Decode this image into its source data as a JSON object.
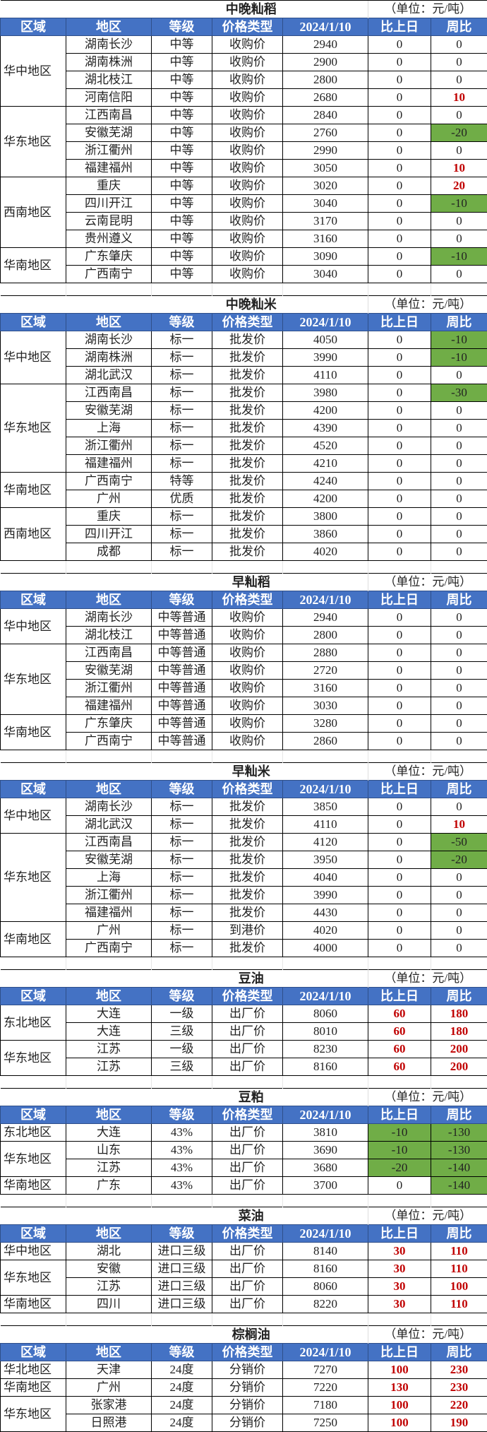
{
  "headers": [
    "区域",
    "地区",
    "等级",
    "价格类型",
    "2024/1/10",
    "比上日",
    "周比"
  ],
  "unit": "（单位：元/吨）",
  "colors": {
    "header_bg": "#4472C4",
    "decrease_bg": "#70AD47",
    "increase_text": "#C00000"
  },
  "tables": [
    {
      "title": "中晚籼稻",
      "groups": [
        {
          "region": "华中地区",
          "rows": [
            [
              "湖南长沙",
              "中等",
              "收购价",
              "2940",
              "0",
              "0"
            ],
            [
              "湖南株洲",
              "中等",
              "收购价",
              "2900",
              "0",
              "0"
            ],
            [
              "湖北枝江",
              "中等",
              "收购价",
              "2800",
              "0",
              "0"
            ],
            [
              "河南信阳",
              "中等",
              "收购价",
              "2680",
              "0",
              "10"
            ]
          ]
        },
        {
          "region": "华东地区",
          "rows": [
            [
              "江西南昌",
              "中等",
              "收购价",
              "2840",
              "0",
              "0"
            ],
            [
              "安徽芜湖",
              "中等",
              "收购价",
              "2760",
              "0",
              "-20"
            ],
            [
              "浙江衢州",
              "中等",
              "收购价",
              "2990",
              "0",
              "0"
            ],
            [
              "福建福州",
              "中等",
              "收购价",
              "3050",
              "0",
              "10"
            ]
          ]
        },
        {
          "region": "西南地区",
          "rows": [
            [
              "重庆",
              "中等",
              "收购价",
              "3020",
              "0",
              "20"
            ],
            [
              "四川开江",
              "中等",
              "收购价",
              "3040",
              "0",
              "-10"
            ],
            [
              "云南昆明",
              "中等",
              "收购价",
              "3170",
              "0",
              "0"
            ],
            [
              "贵州遵义",
              "中等",
              "收购价",
              "3160",
              "0",
              "0"
            ]
          ]
        },
        {
          "region": "华南地区",
          "rows": [
            [
              "广东肇庆",
              "中等",
              "收购价",
              "3090",
              "0",
              "-10"
            ],
            [
              "广西南宁",
              "中等",
              "收购价",
              "3040",
              "0",
              "0"
            ]
          ]
        }
      ]
    },
    {
      "title": "中晚籼米",
      "groups": [
        {
          "region": "华中地区",
          "rows": [
            [
              "湖南长沙",
              "标一",
              "批发价",
              "4050",
              "0",
              "-10"
            ],
            [
              "湖南株洲",
              "标一",
              "批发价",
              "3990",
              "0",
              "-10"
            ],
            [
              "湖北武汉",
              "标一",
              "批发价",
              "4110",
              "0",
              "0"
            ]
          ]
        },
        {
          "region": "华东地区",
          "rows": [
            [
              "江西南昌",
              "标一",
              "批发价",
              "3980",
              "0",
              "-30"
            ],
            [
              "安徽芜湖",
              "标一",
              "批发价",
              "4200",
              "0",
              "0"
            ],
            [
              "上海",
              "标一",
              "批发价",
              "4390",
              "0",
              "0"
            ],
            [
              "浙江衢州",
              "标一",
              "批发价",
              "4520",
              "0",
              "0"
            ],
            [
              "福建福州",
              "标一",
              "批发价",
              "4210",
              "0",
              "0"
            ]
          ]
        },
        {
          "region": "华南地区",
          "rows": [
            [
              "广西南宁",
              "特等",
              "批发价",
              "4240",
              "0",
              "0"
            ],
            [
              "广州",
              "优质",
              "批发价",
              "4200",
              "0",
              "0"
            ]
          ]
        },
        {
          "region": "西南地区",
          "rows": [
            [
              "重庆",
              "标一",
              "批发价",
              "3800",
              "0",
              "0"
            ],
            [
              "四川开江",
              "标一",
              "批发价",
              "3860",
              "0",
              "0"
            ],
            [
              "成都",
              "标一",
              "批发价",
              "4020",
              "0",
              "0"
            ]
          ]
        }
      ]
    },
    {
      "title": "早籼稻",
      "groups": [
        {
          "region": "华中地区",
          "rows": [
            [
              "湖南长沙",
              "中等普通",
              "收购价",
              "2940",
              "0",
              "0"
            ],
            [
              "湖北枝江",
              "中等普通",
              "收购价",
              "2800",
              "0",
              "0"
            ]
          ]
        },
        {
          "region": "华东地区",
          "rows": [
            [
              "江西南昌",
              "中等普通",
              "收购价",
              "2880",
              "0",
              "0"
            ],
            [
              "安徽芜湖",
              "中等普通",
              "收购价",
              "2720",
              "0",
              "0"
            ],
            [
              "浙江衢州",
              "中等普通",
              "收购价",
              "3160",
              "0",
              "0"
            ],
            [
              "福建福州",
              "中等普通",
              "收购价",
              "3030",
              "0",
              "0"
            ]
          ]
        },
        {
          "region": "华南地区",
          "rows": [
            [
              "广东肇庆",
              "中等普通",
              "收购价",
              "3280",
              "0",
              "0"
            ],
            [
              "广西南宁",
              "中等普通",
              "收购价",
              "2860",
              "0",
              "0"
            ]
          ]
        }
      ]
    },
    {
      "title": "早籼米",
      "groups": [
        {
          "region": "华中地区",
          "rows": [
            [
              "湖南长沙",
              "标一",
              "批发价",
              "3850",
              "0",
              "0"
            ],
            [
              "湖北武汉",
              "标一",
              "批发价",
              "4110",
              "0",
              "10"
            ]
          ]
        },
        {
          "region": "华东地区",
          "rows": [
            [
              "江西南昌",
              "标一",
              "批发价",
              "4120",
              "0",
              "-50"
            ],
            [
              "安徽芜湖",
              "标一",
              "批发价",
              "3950",
              "0",
              "-20"
            ],
            [
              "上海",
              "标一",
              "批发价",
              "4040",
              "0",
              "0"
            ],
            [
              "浙江衢州",
              "标一",
              "批发价",
              "3990",
              "0",
              "0"
            ],
            [
              "福建福州",
              "标一",
              "批发价",
              "4430",
              "0",
              "0"
            ]
          ]
        },
        {
          "region": "华南地区",
          "rows": [
            [
              "广州",
              "标一",
              "到港价",
              "4020",
              "0",
              "0"
            ],
            [
              "广西南宁",
              "标一",
              "批发价",
              "4000",
              "0",
              "0"
            ]
          ]
        }
      ]
    },
    {
      "title": "豆油",
      "groups": [
        {
          "region": "东北地区",
          "rows": [
            [
              "大连",
              "一级",
              "出厂价",
              "8060",
              "60",
              "180"
            ],
            [
              "大连",
              "三级",
              "出厂价",
              "8010",
              "60",
              "180"
            ]
          ]
        },
        {
          "region": "华东地区",
          "rows": [
            [
              "江苏",
              "一级",
              "出厂价",
              "8230",
              "60",
              "200"
            ],
            [
              "江苏",
              "三级",
              "出厂价",
              "8160",
              "60",
              "200"
            ]
          ]
        }
      ]
    },
    {
      "title": "豆粕",
      "groups": [
        {
          "region": "东北地区",
          "rows": [
            [
              "大连",
              "43%",
              "出厂价",
              "3810",
              "-10",
              "-130"
            ]
          ]
        },
        {
          "region": "华东地区",
          "rows": [
            [
              "山东",
              "43%",
              "出厂价",
              "3690",
              "-10",
              "-130"
            ],
            [
              "江苏",
              "43%",
              "出厂价",
              "3680",
              "-20",
              "-140"
            ]
          ]
        },
        {
          "region": "华南地区",
          "rows": [
            [
              "广东",
              "43%",
              "出厂价",
              "3700",
              "0",
              "-140"
            ]
          ]
        }
      ]
    },
    {
      "title": "菜油",
      "groups": [
        {
          "region": "华中地区",
          "rows": [
            [
              "湖北",
              "进口三级",
              "出厂价",
              "8140",
              "30",
              "110"
            ]
          ]
        },
        {
          "region": "华东地区",
          "rows": [
            [
              "安徽",
              "进口三级",
              "出厂价",
              "8160",
              "30",
              "110"
            ],
            [
              "江苏",
              "进口三级",
              "出厂价",
              "8060",
              "30",
              "100"
            ]
          ]
        },
        {
          "region": "华南地区",
          "rows": [
            [
              "四川",
              "进口三级",
              "出厂价",
              "8220",
              "30",
              "110"
            ]
          ]
        }
      ]
    },
    {
      "title": "棕榈油",
      "groups": [
        {
          "region": "华北地区",
          "rows": [
            [
              "天津",
              "24度",
              "分销价",
              "7270",
              "100",
              "230"
            ]
          ]
        },
        {
          "region": "华南地区",
          "rows": [
            [
              "广州",
              "24度",
              "分销价",
              "7220",
              "130",
              "230"
            ]
          ]
        },
        {
          "region": "华东地区",
          "rows": [
            [
              "张家港",
              "24度",
              "分销价",
              "7180",
              "100",
              "220"
            ],
            [
              "日照港",
              "24度",
              "分销价",
              "7250",
              "100",
              "190"
            ]
          ]
        }
      ]
    }
  ]
}
